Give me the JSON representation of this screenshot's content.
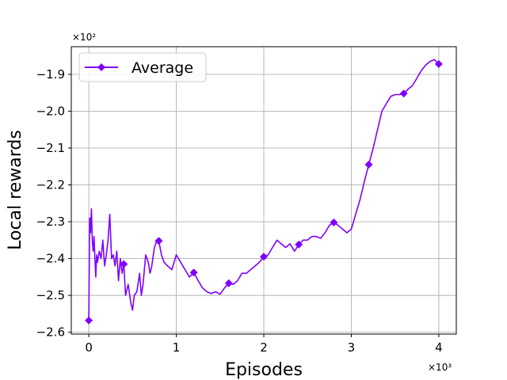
{
  "chart_data": {
    "type": "line",
    "title": "",
    "xlabel": "Episodes",
    "ylabel": "Local rewards",
    "x_multiplier": "×10³",
    "y_multiplier": "×10²",
    "xlim": [
      -0.2,
      4.2
    ],
    "ylim": [
      -2.605,
      -1.825
    ],
    "x_ticks": [
      0,
      1,
      2,
      3,
      4
    ],
    "x_tick_labels": [
      "0",
      "1",
      "2",
      "3",
      "4"
    ],
    "y_ticks": [
      -2.6,
      -2.5,
      -2.4,
      -2.3,
      -2.2,
      -2.1,
      -2.0,
      -1.9
    ],
    "y_tick_labels": [
      "−2.6",
      "−2.5",
      "−2.4",
      "−2.3",
      "−2.2",
      "−2.1",
      "−2.0",
      "−1.9"
    ],
    "grid": true,
    "legend_position": "top-left",
    "series": [
      {
        "name": "Average",
        "color": "#7f00ff",
        "marker": "diamond",
        "x": [
          0.0,
          0.01,
          0.02,
          0.03,
          0.04,
          0.05,
          0.06,
          0.07,
          0.08,
          0.09,
          0.1,
          0.12,
          0.14,
          0.16,
          0.18,
          0.2,
          0.22,
          0.24,
          0.26,
          0.28,
          0.3,
          0.32,
          0.34,
          0.36,
          0.38,
          0.4,
          0.42,
          0.45,
          0.48,
          0.5,
          0.52,
          0.55,
          0.58,
          0.6,
          0.62,
          0.65,
          0.68,
          0.7,
          0.72,
          0.75,
          0.78,
          0.8,
          0.83,
          0.86,
          0.9,
          0.95,
          1.0,
          1.05,
          1.1,
          1.15,
          1.2,
          1.25,
          1.3,
          1.35,
          1.4,
          1.45,
          1.5,
          1.55,
          1.6,
          1.65,
          1.7,
          1.75,
          1.8,
          1.85,
          1.9,
          1.95,
          2.0,
          2.05,
          2.1,
          2.15,
          2.2,
          2.25,
          2.3,
          2.35,
          2.4,
          2.45,
          2.5,
          2.55,
          2.6,
          2.65,
          2.7,
          2.75,
          2.8,
          2.85,
          2.9,
          2.95,
          3.0,
          3.05,
          3.1,
          3.15,
          3.2,
          3.25,
          3.3,
          3.35,
          3.4,
          3.45,
          3.5,
          3.55,
          3.6,
          3.65,
          3.7,
          3.75,
          3.8,
          3.85,
          3.9,
          3.95,
          4.0
        ],
        "y": [
          -2.568,
          -2.29,
          -2.33,
          -2.265,
          -2.35,
          -2.38,
          -2.34,
          -2.4,
          -2.45,
          -2.39,
          -2.41,
          -2.38,
          -2.4,
          -2.35,
          -2.42,
          -2.39,
          -2.35,
          -2.28,
          -2.4,
          -2.39,
          -2.42,
          -2.38,
          -2.46,
          -2.4,
          -2.44,
          -2.415,
          -2.5,
          -2.47,
          -2.52,
          -2.54,
          -2.5,
          -2.49,
          -2.44,
          -2.5,
          -2.47,
          -2.39,
          -2.41,
          -2.44,
          -2.42,
          -2.37,
          -2.35,
          -2.352,
          -2.39,
          -2.41,
          -2.42,
          -2.43,
          -2.39,
          -2.41,
          -2.43,
          -2.45,
          -2.438,
          -2.46,
          -2.48,
          -2.49,
          -2.495,
          -2.49,
          -2.497,
          -2.48,
          -2.467,
          -2.47,
          -2.46,
          -2.44,
          -2.44,
          -2.43,
          -2.42,
          -2.41,
          -2.395,
          -2.39,
          -2.37,
          -2.35,
          -2.36,
          -2.37,
          -2.36,
          -2.38,
          -2.362,
          -2.35,
          -2.35,
          -2.34,
          -2.34,
          -2.345,
          -2.33,
          -2.31,
          -2.302,
          -2.31,
          -2.32,
          -2.33,
          -2.32,
          -2.28,
          -2.24,
          -2.19,
          -2.145,
          -2.1,
          -2.05,
          -2.0,
          -1.98,
          -1.96,
          -1.955,
          -1.955,
          -1.952,
          -1.94,
          -1.93,
          -1.91,
          -1.89,
          -1.875,
          -1.865,
          -1.86,
          -1.872
        ],
        "marker_x": [
          0.0,
          0.4,
          0.8,
          1.2,
          1.6,
          2.0,
          2.4,
          2.8,
          3.2,
          3.6,
          4.0
        ],
        "marker_y": [
          -2.568,
          -2.415,
          -2.352,
          -2.438,
          -2.467,
          -2.395,
          -2.362,
          -2.302,
          -2.145,
          -1.952,
          -1.872
        ]
      }
    ]
  }
}
